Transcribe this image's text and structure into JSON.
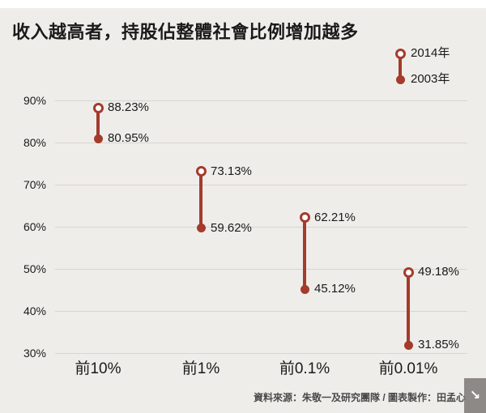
{
  "title": "收入越高者，持股佔整體社會比例增加越多",
  "legend": {
    "items": [
      {
        "label": "2014年",
        "marker": "open-circle"
      },
      {
        "label": "2003年",
        "marker": "filled-circle"
      }
    ]
  },
  "footer": {
    "source": "資料來源：朱敬一及研究團隊 / 圖表製作：田孟心"
  },
  "overlay_icon": {
    "name": "expand-arrow-icon",
    "glyph": "↘"
  },
  "colors": {
    "accent_red": "#A43B2C",
    "background": "#EFEDEA",
    "gridline": "#D8D5D1",
    "text": "#1A1A1A",
    "footer_text": "#4A4A4A"
  },
  "chart_data": {
    "type": "scatter",
    "variant": "dumbbell-range",
    "title": "收入越高者，持股佔整體社會比例增加越多",
    "categories": [
      "前10%",
      "前1%",
      "前0.1%",
      "前0.01%"
    ],
    "series": [
      {
        "name": "2014年",
        "marker": "open-circle",
        "values": [
          88.23,
          73.13,
          62.21,
          49.18
        ]
      },
      {
        "name": "2003年",
        "marker": "filled-circle",
        "values": [
          80.95,
          59.62,
          45.12,
          31.85
        ]
      }
    ],
    "ylim": [
      30,
      90
    ],
    "yticks": [
      90,
      80,
      70,
      60,
      50,
      40,
      30
    ],
    "ytick_suffix": "%",
    "value_label_suffix": "%",
    "grid": true,
    "legend_position": "top-right",
    "xlabel": "",
    "ylabel": ""
  }
}
